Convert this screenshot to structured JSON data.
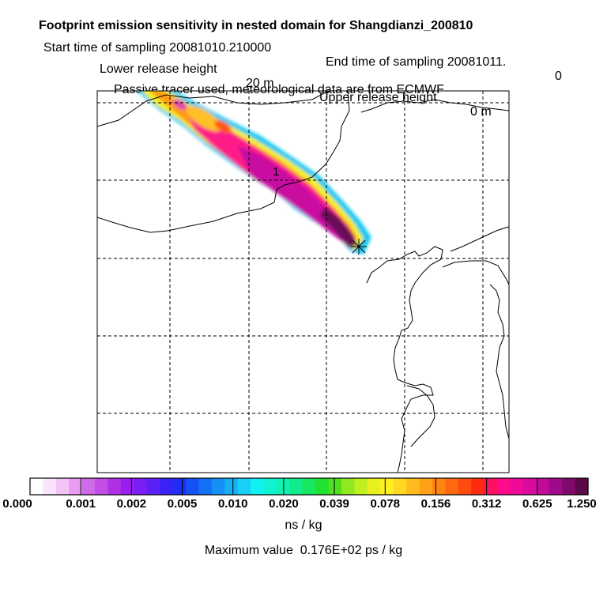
{
  "header": {
    "title": "Footprint emission sensitivity in nested domain for Shangdianzi_200810",
    "start_label": "Start time of sampling 20081010.210000",
    "end_label": "End time of sampling 20081011.",
    "end_value": "0",
    "lower_label": "Lower release height",
    "lower_value": "20 m",
    "upper_label": "Upper release height",
    "upper_value": "0 m",
    "tracer_line": "Passive tracer used, meteorological data are from ECMWF"
  },
  "map": {
    "plume_label": "1",
    "receptor_marker": "×"
  },
  "colorbar": {
    "tick_labels": [
      "0.000",
      "0.001",
      "0.002",
      "0.005",
      "0.010",
      "0.020",
      "0.039",
      "0.078",
      "0.156",
      "0.312",
      "0.625",
      "1.250"
    ],
    "colors": [
      "#ffffff",
      "#f9e4fb",
      "#f1c4f5",
      "#e79cf0",
      "#cf6ae8",
      "#c24ee5",
      "#b030e6",
      "#9a1ef0",
      "#7a1ef5",
      "#5a20f5",
      "#3a22f5",
      "#1e2ef5",
      "#1550f5",
      "#1470f5",
      "#1590f5",
      "#16b0f5",
      "#18d0f5",
      "#10f2f2",
      "#10f2d0",
      "#10f2b0",
      "#10ec8a",
      "#18e860",
      "#20e030",
      "#50e020",
      "#90e820",
      "#c0ef20",
      "#e8f020",
      "#fff022",
      "#ffd820",
      "#ffbc1c",
      "#ffa218",
      "#ff8414",
      "#ff6810",
      "#ff4a10",
      "#ff2a10",
      "#ff1060",
      "#ff0a88",
      "#f00a9a",
      "#d80aa0",
      "#c00a98",
      "#a00a8a",
      "#800a6c",
      "#5a0a48"
    ],
    "unit": "ns / kg",
    "max_value_text": "Maximum value  0.176E+02 ps / kg"
  }
}
